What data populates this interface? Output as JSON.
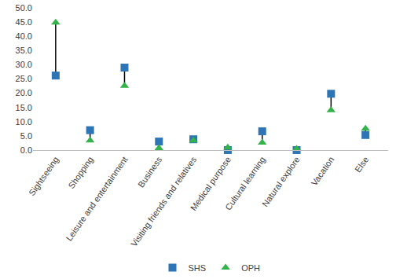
{
  "chart_data": {
    "type": "dumbbell",
    "categories": [
      "Sightseeing",
      "Shopping",
      "Leisure and entertainment",
      "Business",
      "Visiting friends and relatives",
      "Medical purpose",
      "Cultural learning",
      "Natural explore",
      "Vacation",
      "Else"
    ],
    "series": [
      {
        "name": "SHS",
        "color": "#2e75b6",
        "marker": "square",
        "values": [
          26.2,
          7.0,
          29.0,
          3.0,
          3.8,
          0.0,
          6.6,
          0.0,
          19.8,
          5.3
        ]
      },
      {
        "name": "OPH",
        "color": "#33b34a",
        "marker": "triangle-up",
        "values": [
          44.8,
          3.4,
          22.6,
          0.7,
          3.4,
          0.9,
          2.6,
          0.4,
          14.0,
          7.5
        ]
      }
    ],
    "ylim": [
      0,
      50
    ],
    "yticks": [
      {
        "value": 0,
        "label": "0.0"
      },
      {
        "value": 5,
        "label": "5.0"
      },
      {
        "value": 10,
        "label": "10.0"
      },
      {
        "value": 15,
        "label": "15.0"
      },
      {
        "value": 20,
        "label": "20.0"
      },
      {
        "value": 25,
        "label": "25.0"
      },
      {
        "value": 30,
        "label": "30.0"
      },
      {
        "value": 35,
        "label": "35.0"
      },
      {
        "value": 40,
        "label": "40.0"
      },
      {
        "value": 45,
        "label": "45.0"
      },
      {
        "value": 50,
        "label": "50.0"
      }
    ],
    "grid": false,
    "legend": "bottom"
  }
}
